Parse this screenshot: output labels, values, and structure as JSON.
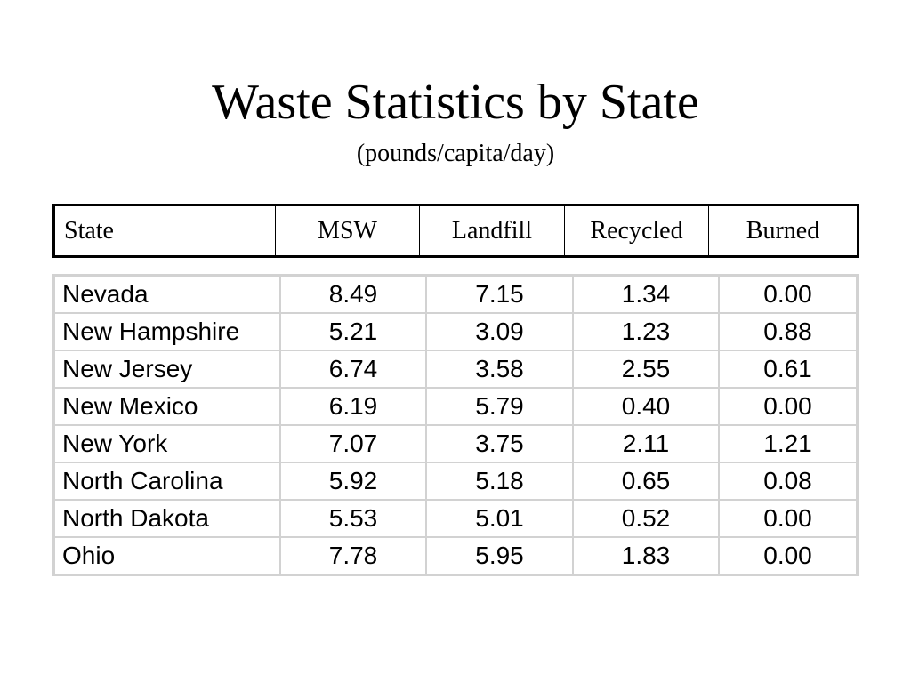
{
  "title": "Waste Statistics by State",
  "subtitle": "(pounds/capita/day)",
  "headers": [
    "State",
    "MSW",
    "Landfill",
    "Recycled",
    "Burned"
  ],
  "rows": [
    [
      "Nevada",
      "8.49",
      "7.15",
      "1.34",
      "0.00"
    ],
    [
      "New Hampshire",
      "5.21",
      "3.09",
      "1.23",
      "0.88"
    ],
    [
      "New Jersey",
      "6.74",
      "3.58",
      "2.55",
      "0.61"
    ],
    [
      "New Mexico",
      "6.19",
      "5.79",
      "0.40",
      "0.00"
    ],
    [
      "New York",
      "7.07",
      "3.75",
      "2.11",
      "1.21"
    ],
    [
      "North Carolina",
      "5.92",
      "5.18",
      "0.65",
      "0.08"
    ],
    [
      "North Dakota",
      "5.53",
      "5.01",
      "0.52",
      "0.00"
    ],
    [
      "Ohio",
      "7.78",
      "5.95",
      "1.83",
      "0.00"
    ]
  ]
}
